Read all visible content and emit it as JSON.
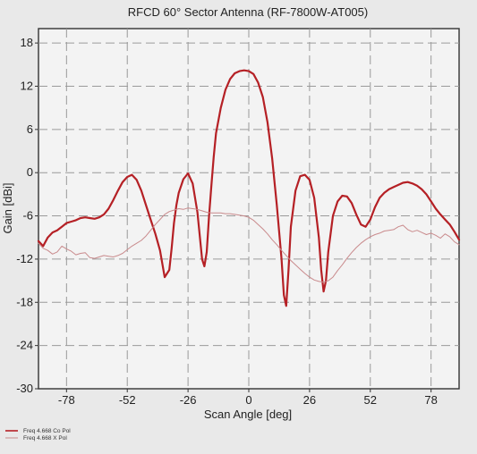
{
  "chart_data": {
    "type": "line",
    "title": "RFCD 60° Sector Antenna (RF-7800W-AT005)",
    "xlabel": "Scan Angle [deg]",
    "ylabel": "Gain [dBi]",
    "xlim": [
      -90,
      90
    ],
    "ylim": [
      -30,
      20
    ],
    "xticks": [
      -78,
      -52,
      -26,
      0,
      26,
      52,
      78
    ],
    "yticks": [
      18,
      12,
      6,
      0,
      -6,
      -12,
      -18,
      -24,
      -30
    ],
    "grid": true,
    "grid_style": "dashed",
    "legend_position": "bottom-left",
    "series": [
      {
        "name": "Freq 4.668  Co Pol",
        "color": "#b52025",
        "x": [
          -90,
          -88,
          -86,
          -84,
          -82,
          -80,
          -78,
          -76,
          -74,
          -72,
          -70,
          -68,
          -66,
          -64,
          -62,
          -60,
          -58,
          -56,
          -54,
          -52,
          -50,
          -48,
          -46,
          -44,
          -42,
          -40,
          -38,
          -36,
          -34,
          -33,
          -32,
          -31,
          -30,
          -28,
          -26,
          -24,
          -22,
          -20,
          -19,
          -18,
          -17,
          -16,
          -15,
          -14,
          -12,
          -10,
          -8,
          -6,
          -4,
          -2,
          0,
          2,
          4,
          6,
          8,
          10,
          12,
          14,
          15,
          16,
          17,
          18,
          20,
          22,
          24,
          26,
          28,
          30,
          31,
          32,
          33,
          34,
          36,
          38,
          40,
          42,
          44,
          46,
          48,
          50,
          52,
          54,
          56,
          58,
          60,
          62,
          64,
          66,
          68,
          70,
          72,
          74,
          76,
          78,
          80,
          82,
          84,
          86,
          88,
          90
        ],
        "y": [
          -9.5,
          -10.2,
          -9.0,
          -8.3,
          -8.0,
          -7.5,
          -7.0,
          -6.8,
          -6.6,
          -6.3,
          -6.2,
          -6.3,
          -6.4,
          -6.2,
          -5.8,
          -5.0,
          -3.8,
          -2.5,
          -1.3,
          -0.6,
          -0.3,
          -1.0,
          -2.5,
          -4.5,
          -6.5,
          -8.5,
          -10.8,
          -14.5,
          -13.5,
          -10.5,
          -7.0,
          -4.5,
          -2.8,
          -0.9,
          -0.1,
          -1.5,
          -5.5,
          -12.0,
          -13.0,
          -11.0,
          -6.0,
          -1.8,
          2.2,
          5.5,
          9.0,
          11.5,
          13.0,
          13.8,
          14.1,
          14.2,
          14.1,
          13.7,
          12.5,
          10.5,
          7.0,
          2.0,
          -4.5,
          -12.0,
          -17.0,
          -18.5,
          -13.5,
          -7.5,
          -2.5,
          -0.5,
          -0.3,
          -1.0,
          -3.5,
          -9.0,
          -13.5,
          -16.5,
          -15.0,
          -11.0,
          -6.0,
          -4.0,
          -3.2,
          -3.3,
          -4.2,
          -5.8,
          -7.2,
          -7.5,
          -6.5,
          -4.8,
          -3.5,
          -2.8,
          -2.3,
          -2.0,
          -1.7,
          -1.4,
          -1.3,
          -1.5,
          -1.8,
          -2.3,
          -3.0,
          -4.0,
          -5.0,
          -5.8,
          -6.5,
          -7.2,
          -8.2,
          -9.3
        ]
      },
      {
        "name": "Freq 4.668  X Pol",
        "color": "#c98a8c",
        "x": [
          -90,
          -88,
          -86,
          -84,
          -82,
          -80,
          -78,
          -76,
          -74,
          -72,
          -70,
          -68,
          -66,
          -64,
          -62,
          -60,
          -58,
          -56,
          -54,
          -52,
          -50,
          -48,
          -46,
          -44,
          -42,
          -40,
          -38,
          -36,
          -34,
          -32,
          -30,
          -28,
          -26,
          -24,
          -22,
          -20,
          -18,
          -16,
          -14,
          -12,
          -10,
          -8,
          -6,
          -4,
          -2,
          0,
          2,
          4,
          6,
          8,
          10,
          12,
          14,
          16,
          18,
          20,
          22,
          24,
          26,
          28,
          30,
          32,
          34,
          36,
          38,
          40,
          42,
          44,
          46,
          48,
          50,
          52,
          54,
          56,
          58,
          60,
          62,
          64,
          66,
          68,
          70,
          72,
          74,
          76,
          78,
          80,
          82,
          84,
          86,
          88,
          90
        ],
        "y": [
          -9.8,
          -10.5,
          -10.8,
          -11.3,
          -11.0,
          -10.2,
          -10.6,
          -10.9,
          -11.4,
          -11.2,
          -11.1,
          -11.8,
          -11.9,
          -11.7,
          -11.5,
          -11.6,
          -11.7,
          -11.5,
          -11.2,
          -10.7,
          -10.2,
          -9.8,
          -9.4,
          -8.8,
          -8.0,
          -7.2,
          -6.5,
          -5.8,
          -5.4,
          -5.2,
          -5.0,
          -5.1,
          -4.9,
          -5.0,
          -5.1,
          -5.3,
          -5.5,
          -5.6,
          -5.6,
          -5.6,
          -5.7,
          -5.7,
          -5.8,
          -5.9,
          -6.0,
          -6.2,
          -6.6,
          -7.2,
          -7.8,
          -8.5,
          -9.3,
          -10.0,
          -10.8,
          -11.5,
          -12.2,
          -12.8,
          -13.4,
          -14.0,
          -14.5,
          -14.9,
          -15.1,
          -15.2,
          -15.0,
          -14.5,
          -13.6,
          -12.8,
          -11.9,
          -11.1,
          -10.4,
          -9.8,
          -9.3,
          -8.9,
          -8.6,
          -8.4,
          -8.1,
          -8.0,
          -7.9,
          -7.5,
          -7.3,
          -7.9,
          -8.2,
          -8.0,
          -8.3,
          -8.6,
          -8.4,
          -8.7,
          -9.1,
          -8.5,
          -8.9,
          -9.6,
          -10.0
        ]
      }
    ]
  }
}
